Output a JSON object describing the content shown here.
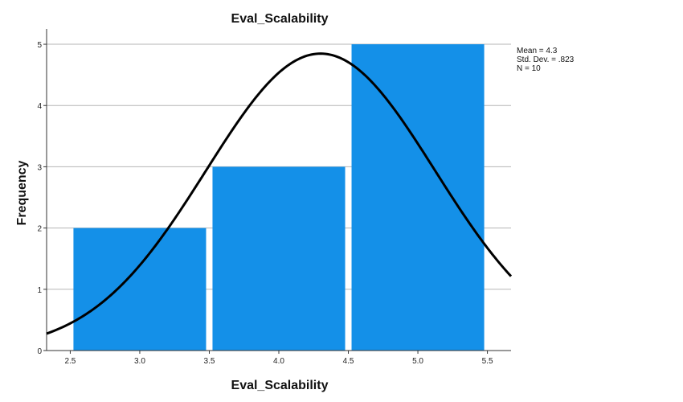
{
  "chart_data": {
    "type": "bar",
    "title": "Eval_Scalability",
    "xlabel": "Eval_Scalability",
    "ylabel": "Frequency",
    "x_ticks": [
      "2.5",
      "3.0",
      "3.5",
      "4.0",
      "4.5",
      "5.0",
      "5.5"
    ],
    "x_tick_values": [
      2.5,
      3.0,
      3.5,
      4.0,
      4.5,
      5.0,
      5.5
    ],
    "y_ticks": [
      "0",
      "1",
      "2",
      "3",
      "4",
      "5"
    ],
    "y_tick_values": [
      0,
      1,
      2,
      3,
      4,
      5
    ],
    "xlim": [
      2.33,
      5.67
    ],
    "ylim": [
      0,
      5.25
    ],
    "grid": true,
    "bins": [
      {
        "label": "3.0",
        "start": 2.5,
        "end": 3.5,
        "value": 2
      },
      {
        "label": "4.0",
        "start": 3.5,
        "end": 4.5,
        "value": 3
      },
      {
        "label": "5.0",
        "start": 4.5,
        "end": 5.5,
        "value": 5
      }
    ],
    "bar_color": "#1490e8",
    "curve": {
      "type": "normal",
      "mean": 4.3,
      "sd": 0.823,
      "n": 10,
      "bin_width": 1
    },
    "stats_box": {
      "placement": "top-right",
      "lines": [
        "Mean = 4.3",
        "Std. Dev. = .823",
        "N = 10"
      ]
    }
  }
}
